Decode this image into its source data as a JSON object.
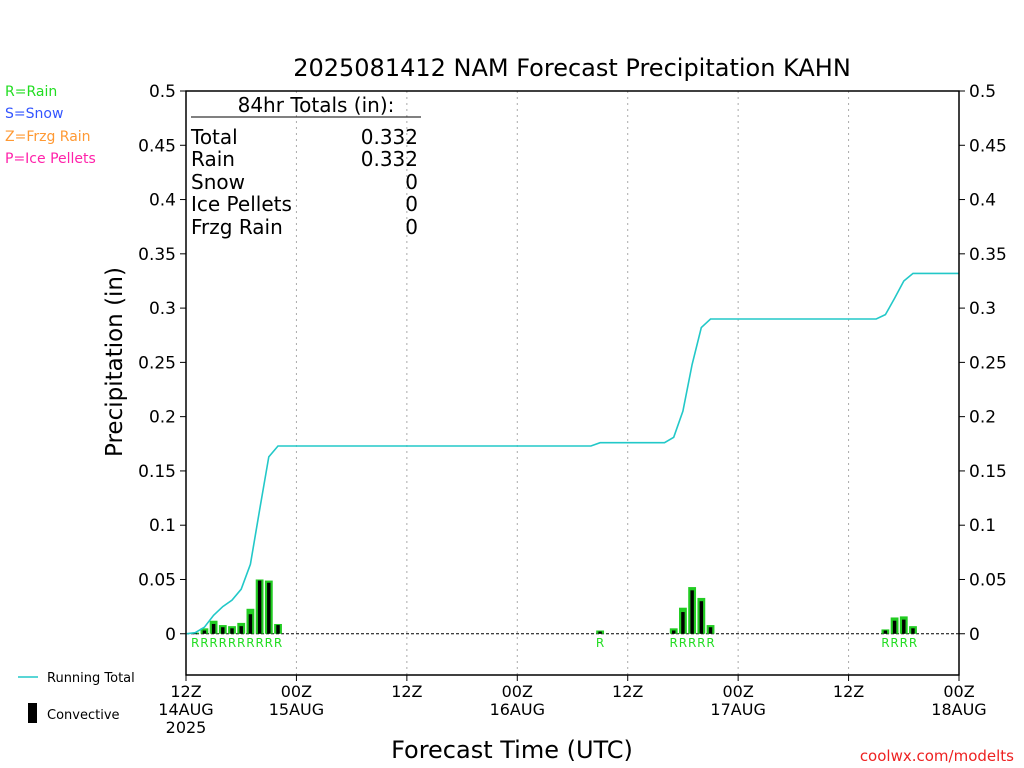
{
  "title": "2025081412 NAM Forecast Precipitation KAHN",
  "ylabel": "Precipitation (in)",
  "xlabel": "Forecast Time (UTC)",
  "credit": "coolwx.com/modelts",
  "type_legend": [
    {
      "label": "R=Rain",
      "color": "#22dd22"
    },
    {
      "label": "S=Snow",
      "color": "#3355ff"
    },
    {
      "label": "Z=Frzg Rain",
      "color": "#ff9933"
    },
    {
      "label": "P=Ice Pellets",
      "color": "#ff22aa"
    }
  ],
  "totals": {
    "header": "84hr Totals (in):",
    "rows": [
      {
        "label": "Total",
        "value": "0.332"
      },
      {
        "label": "Rain",
        "value": "0.332"
      },
      {
        "label": "Snow",
        "value": "0"
      },
      {
        "label": "Ice Pellets",
        "value": "0"
      },
      {
        "label": "Frzg Rain",
        "value": "0"
      }
    ]
  },
  "series_legend": {
    "running_total": "Running Total",
    "convective": "Convective"
  },
  "colors": {
    "running_total": "#22c8c8",
    "rain_bar": "#22cc22",
    "convective": "#000000",
    "grid": "#aaaaaa",
    "rain_label": "#22dd22"
  },
  "chart_data": {
    "type": "bar",
    "y_ticks": [
      "0",
      "0.05",
      "0.1",
      "0.15",
      "0.2",
      "0.25",
      "0.3",
      "0.35",
      "0.4",
      "0.45",
      "0.5"
    ],
    "ylim": [
      -0.038,
      0.5
    ],
    "xlim_hours": [
      0,
      84
    ],
    "x_ticks": [
      {
        "hour": 0,
        "lines": [
          "12Z",
          "14AUG",
          "2025"
        ]
      },
      {
        "hour": 12,
        "lines": [
          "00Z",
          "15AUG"
        ]
      },
      {
        "hour": 24,
        "lines": [
          "12Z"
        ]
      },
      {
        "hour": 36,
        "lines": [
          "00Z",
          "16AUG"
        ]
      },
      {
        "hour": 48,
        "lines": [
          "12Z"
        ]
      },
      {
        "hour": 60,
        "lines": [
          "00Z",
          "17AUG"
        ]
      },
      {
        "hour": 72,
        "lines": [
          "12Z"
        ]
      },
      {
        "hour": 84,
        "lines": [
          "00Z",
          "18AUG"
        ]
      }
    ],
    "precip_bars": [
      {
        "hour": 1,
        "total": 0.001,
        "convective": 0.0005,
        "type": "R"
      },
      {
        "hour": 2,
        "total": 0.005,
        "convective": 0.003,
        "type": "R"
      },
      {
        "hour": 3,
        "total": 0.012,
        "convective": 0.009,
        "type": "R"
      },
      {
        "hour": 4,
        "total": 0.008,
        "convective": 0.006,
        "type": "R"
      },
      {
        "hour": 5,
        "total": 0.007,
        "convective": 0.005,
        "type": "R"
      },
      {
        "hour": 6,
        "total": 0.01,
        "convective": 0.007,
        "type": "R"
      },
      {
        "hour": 7,
        "total": 0.023,
        "convective": 0.018,
        "type": "R"
      },
      {
        "hour": 8,
        "total": 0.05,
        "convective": 0.049,
        "type": "R"
      },
      {
        "hour": 9,
        "total": 0.049,
        "convective": 0.047,
        "type": "R"
      },
      {
        "hour": 10,
        "total": 0.009,
        "convective": 0.008,
        "type": "R"
      },
      {
        "hour": 45,
        "total": 0.003,
        "convective": 0.002,
        "type": "R"
      },
      {
        "hour": 53,
        "total": 0.005,
        "convective": 0.003,
        "type": "R"
      },
      {
        "hour": 54,
        "total": 0.024,
        "convective": 0.02,
        "type": "R"
      },
      {
        "hour": 55,
        "total": 0.043,
        "convective": 0.04,
        "type": "R"
      },
      {
        "hour": 56,
        "total": 0.033,
        "convective": 0.03,
        "type": "R"
      },
      {
        "hour": 57,
        "total": 0.008,
        "convective": 0.006,
        "type": "R"
      },
      {
        "hour": 76,
        "total": 0.004,
        "convective": 0.003,
        "type": "R"
      },
      {
        "hour": 77,
        "total": 0.015,
        "convective": 0.012,
        "type": "R"
      },
      {
        "hour": 78,
        "total": 0.016,
        "convective": 0.013,
        "type": "R"
      },
      {
        "hour": 79,
        "total": 0.007,
        "convective": 0.005,
        "type": "R"
      }
    ],
    "running_total": [
      [
        0,
        0
      ],
      [
        1,
        0.001
      ],
      [
        2,
        0.006
      ],
      [
        3,
        0.017
      ],
      [
        4,
        0.025
      ],
      [
        5,
        0.031
      ],
      [
        6,
        0.041
      ],
      [
        7,
        0.064
      ],
      [
        8,
        0.114
      ],
      [
        9,
        0.163
      ],
      [
        10,
        0.173
      ],
      [
        20,
        0.173
      ],
      [
        30,
        0.173
      ],
      [
        40,
        0.173
      ],
      [
        44,
        0.173
      ],
      [
        45,
        0.176
      ],
      [
        50,
        0.176
      ],
      [
        52,
        0.176
      ],
      [
        53,
        0.181
      ],
      [
        54,
        0.205
      ],
      [
        55,
        0.248
      ],
      [
        56,
        0.282
      ],
      [
        57,
        0.29
      ],
      [
        65,
        0.29
      ],
      [
        70,
        0.29
      ],
      [
        75,
        0.29
      ],
      [
        76,
        0.294
      ],
      [
        77,
        0.309
      ],
      [
        78,
        0.325
      ],
      [
        79,
        0.332
      ],
      [
        84,
        0.332
      ]
    ]
  }
}
